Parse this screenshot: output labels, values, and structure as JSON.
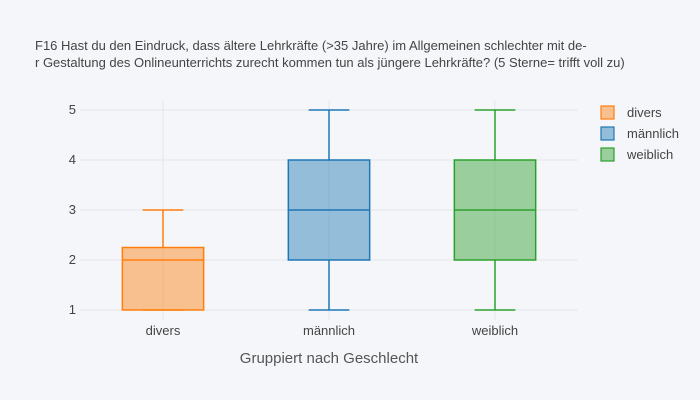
{
  "chart_data": {
    "type": "box",
    "title_lines": [
      "F16 Hast du den Eindruck, dass  ältere Lehrkräfte (>35 Jahre) im Allgemeinen schlechter mit de-",
      "r Gestaltung des  Onlineunterrichts zurecht kommen tun als jüngere Lehrkräfte? (5 Sterne= trifft voll zu)"
    ],
    "xlabel": "Gruppiert nach Geschlecht",
    "ylabel": "",
    "ylim": [
      0.8,
      5.2
    ],
    "y_ticks": [
      1,
      2,
      3,
      4,
      5
    ],
    "categories": [
      "divers",
      "männlich",
      "weiblich"
    ],
    "series": [
      {
        "name": "divers",
        "color": "#ff7f0e",
        "min": 1,
        "q1": 1,
        "median": 2,
        "q3": 2.25,
        "max": 3
      },
      {
        "name": "männlich",
        "color": "#1f77b4",
        "min": 1,
        "q1": 2,
        "median": 3,
        "q3": 4,
        "max": 5
      },
      {
        "name": "weiblich",
        "color": "#2ca02c",
        "min": 1,
        "q1": 2,
        "median": 3,
        "q3": 4,
        "max": 5
      }
    ],
    "grid": true,
    "legend_position": "top-right"
  }
}
